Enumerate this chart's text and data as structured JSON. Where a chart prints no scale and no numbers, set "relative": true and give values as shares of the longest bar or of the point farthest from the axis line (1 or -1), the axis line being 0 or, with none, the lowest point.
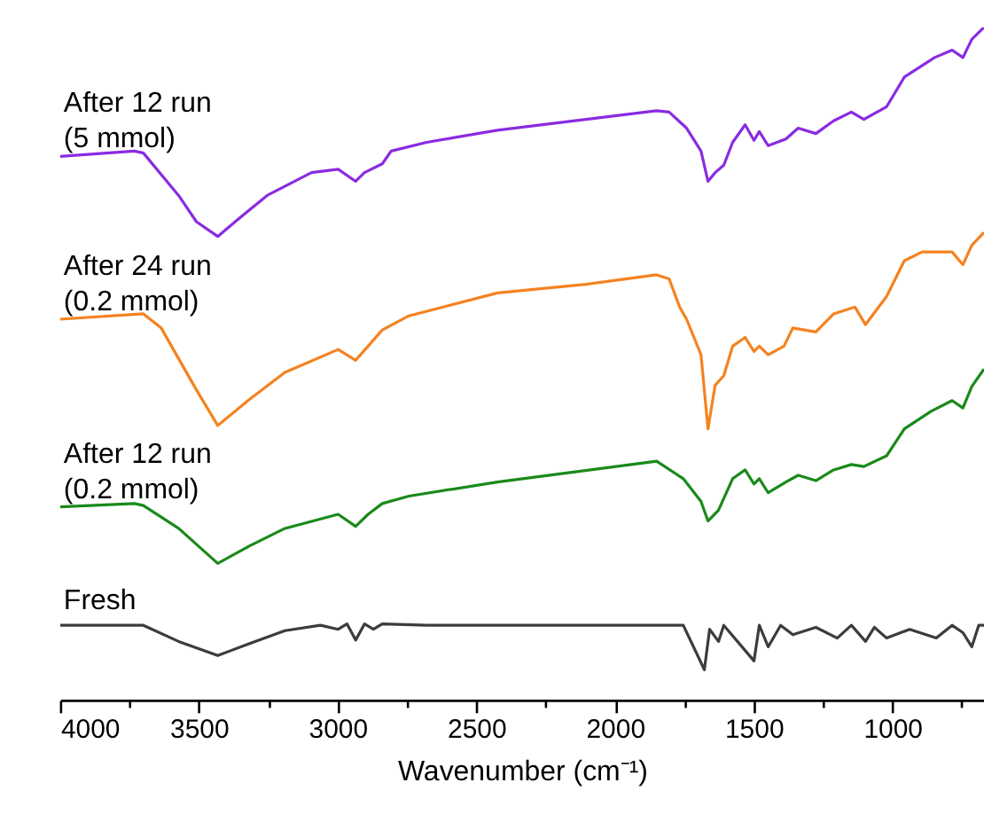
{
  "chart_data": {
    "type": "line",
    "relative": true,
    "xlabel": "Wavenumber (cm⁻¹)",
    "xlim": [
      4000,
      670
    ],
    "xticks": [
      4000,
      {
        "value": 3750,
        "label": null
      },
      3500,
      {
        "value": 3250,
        "label": null
      },
      3000,
      {
        "value": 2750,
        "label": null
      },
      2500,
      {
        "value": 2250,
        "label": null
      },
      2000,
      {
        "value": 1750,
        "label": null
      },
      1500,
      {
        "value": 1250,
        "label": null
      },
      1000,
      {
        "value": 750,
        "label": null
      }
    ],
    "series": [
      {
        "name": "After 12 run\n(5 mmol)",
        "color": "#8a2be2",
        "x": [
          4000,
          3732,
          3700,
          3573,
          3509,
          3432,
          3349,
          3254,
          3094,
          2998,
          2935,
          2903,
          2839,
          2807,
          2679,
          2424,
          2105,
          1850,
          1805,
          1742,
          1690,
          1665,
          1639,
          1608,
          1576,
          1531,
          1499,
          1480,
          1448,
          1384,
          1340,
          1276,
          1212,
          1148,
          1103,
          1021,
          957,
          848,
          785,
          746,
          714,
          670
        ],
        "values": [
          0.808,
          0.816,
          0.813,
          0.75,
          0.711,
          0.689,
          0.718,
          0.75,
          0.784,
          0.789,
          0.771,
          0.784,
          0.797,
          0.816,
          0.829,
          0.847,
          0.863,
          0.876,
          0.874,
          0.85,
          0.816,
          0.771,
          0.784,
          0.795,
          0.829,
          0.855,
          0.832,
          0.845,
          0.824,
          0.834,
          0.85,
          0.842,
          0.861,
          0.874,
          0.863,
          0.882,
          0.926,
          0.955,
          0.966,
          0.955,
          0.982,
          1
        ]
      },
      {
        "name": "After 24 run\n(0.2 mmol)",
        "color": "#f58220",
        "x": [
          4000,
          3700,
          3636,
          3509,
          3432,
          3317,
          3190,
          2998,
          2935,
          2890,
          2839,
          2743,
          2424,
          2105,
          1850,
          1805,
          1767,
          1742,
          1690,
          1665,
          1639,
          1608,
          1576,
          1531,
          1499,
          1480,
          1448,
          1391,
          1359,
          1276,
          1212,
          1135,
          1097,
          1021,
          957,
          893,
          785,
          746,
          714,
          670
        ],
        "values": [
          0.566,
          0.574,
          0.553,
          0.461,
          0.408,
          0.447,
          0.487,
          0.521,
          0.505,
          0.526,
          0.55,
          0.571,
          0.605,
          0.618,
          0.632,
          0.626,
          0.584,
          0.566,
          0.513,
          0.403,
          0.468,
          0.482,
          0.526,
          0.539,
          0.518,
          0.526,
          0.513,
          0.526,
          0.553,
          0.547,
          0.574,
          0.584,
          0.558,
          0.6,
          0.653,
          0.666,
          0.666,
          0.647,
          0.676,
          0.695
        ]
      },
      {
        "name": "After 12 run\n(0.2 mmol)",
        "color": "#1a8a1a",
        "x": [
          4000,
          3732,
          3700,
          3573,
          3432,
          3317,
          3190,
          2998,
          2935,
          2890,
          2839,
          2743,
          2424,
          1850,
          1754,
          1690,
          1665,
          1627,
          1576,
          1531,
          1499,
          1480,
          1448,
          1384,
          1340,
          1276,
          1212,
          1148,
          1103,
          1021,
          957,
          861,
          785,
          746,
          714,
          670
        ],
        "values": [
          0.287,
          0.292,
          0.289,
          0.255,
          0.203,
          0.229,
          0.255,
          0.276,
          0.258,
          0.276,
          0.292,
          0.303,
          0.324,
          0.355,
          0.329,
          0.295,
          0.266,
          0.282,
          0.329,
          0.342,
          0.321,
          0.329,
          0.308,
          0.324,
          0.334,
          0.326,
          0.342,
          0.35,
          0.347,
          0.363,
          0.403,
          0.429,
          0.445,
          0.434,
          0.466,
          0.492
        ]
      },
      {
        "name": "Fresh",
        "color": "#3c3c3c",
        "x": [
          4000,
          3700,
          3573,
          3432,
          3317,
          3190,
          3062,
          2998,
          2966,
          2935,
          2903,
          2871,
          2839,
          2679,
          1754,
          1678,
          1659,
          1627,
          1608,
          1499,
          1480,
          1448,
          1403,
          1359,
          1276,
          1199,
          1148,
          1097,
          1065,
          1021,
          938,
          842,
          785,
          746,
          714,
          689,
          670
        ],
        "values": [
          0.111,
          0.111,
          0.087,
          0.066,
          0.084,
          0.103,
          0.111,
          0.105,
          0.113,
          0.089,
          0.113,
          0.105,
          0.113,
          0.111,
          0.111,
          0.045,
          0.105,
          0.087,
          0.111,
          0.058,
          0.111,
          0.079,
          0.111,
          0.097,
          0.108,
          0.092,
          0.111,
          0.087,
          0.108,
          0.092,
          0.105,
          0.092,
          0.111,
          0.1,
          0.079,
          0.111,
          0.111
        ]
      }
    ]
  }
}
